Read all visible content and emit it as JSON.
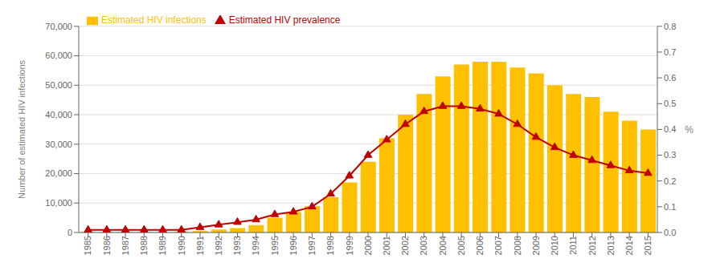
{
  "chart_data": {
    "type": "bar",
    "categories": [
      "1985",
      "1986",
      "1987",
      "1988",
      "1989",
      "1990",
      "1991",
      "1992",
      "1993",
      "1994",
      "1995",
      "1996",
      "1997",
      "1998",
      "1999",
      "2000",
      "2001",
      "2002",
      "2003",
      "2004",
      "2005",
      "2006",
      "2007",
      "2008",
      "2009",
      "2010",
      "2011",
      "2012",
      "2013",
      "2014",
      "2015"
    ],
    "series": [
      {
        "name": "Estimated HIV infections",
        "type": "bar",
        "color": "#FFC000",
        "values": [
          100,
          100,
          100,
          100,
          100,
          200,
          500,
          1000,
          1500,
          2500,
          5000,
          7000,
          9000,
          12000,
          17000,
          24000,
          32000,
          40000,
          47000,
          53000,
          57000,
          58000,
          58000,
          56000,
          54000,
          50000,
          47000,
          46000,
          41000,
          38000,
          35000
        ]
      },
      {
        "name": "Estimated HIV prevalence",
        "type": "line",
        "color": "#C00000",
        "marker": "triangle",
        "axis": "y2",
        "values": [
          0.01,
          0.01,
          0.01,
          0.01,
          0.01,
          0.01,
          0.02,
          0.03,
          0.04,
          0.05,
          0.07,
          0.08,
          0.1,
          0.15,
          0.22,
          0.3,
          0.36,
          0.42,
          0.47,
          0.49,
          0.49,
          0.48,
          0.46,
          0.42,
          0.37,
          0.33,
          0.3,
          0.28,
          0.26,
          0.24,
          0.23
        ]
      }
    ],
    "ylabel": "Number of estimated HIV infections",
    "y2label": "%",
    "ylim": [
      0,
      70000
    ],
    "yticks": [
      0,
      {
        "value": 10000,
        "label": "10,000"
      },
      {
        "value": 20000,
        "label": "20,000"
      },
      {
        "value": 30000,
        "label": "30,000"
      },
      {
        "value": 40000,
        "label": "40,000"
      },
      {
        "value": 50000,
        "label": "50,000"
      },
      {
        "value": 60000,
        "label": "60,000"
      },
      {
        "value": 70000,
        "label": "70,000"
      }
    ],
    "y2lim": [
      0,
      0.8
    ],
    "y2ticks": [
      {
        "value": 0,
        "label": "0.0"
      },
      0.1,
      0.2,
      0.3,
      0.4,
      0.5,
      0.6,
      0.7,
      0.8
    ],
    "grid": true,
    "legend": "upper left"
  }
}
